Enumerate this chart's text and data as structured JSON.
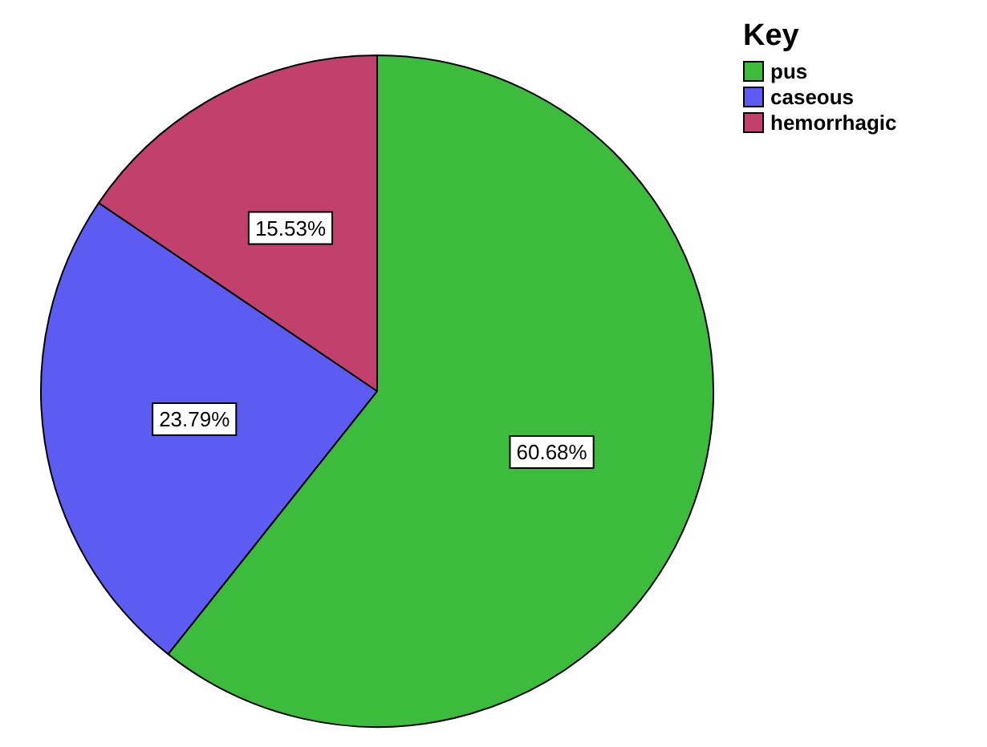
{
  "chart_data": {
    "type": "pie",
    "legend_title": "Key",
    "legend": "top right",
    "categories": [
      "pus",
      "caseous",
      "hemorrhagic"
    ],
    "values": [
      60.68,
      23.79,
      15.53
    ],
    "value_labels": [
      "60.68%",
      "23.79%",
      "15.53%"
    ],
    "colors": [
      "#3dbb3d",
      "#5c5cf2",
      "#c2406c"
    ]
  }
}
